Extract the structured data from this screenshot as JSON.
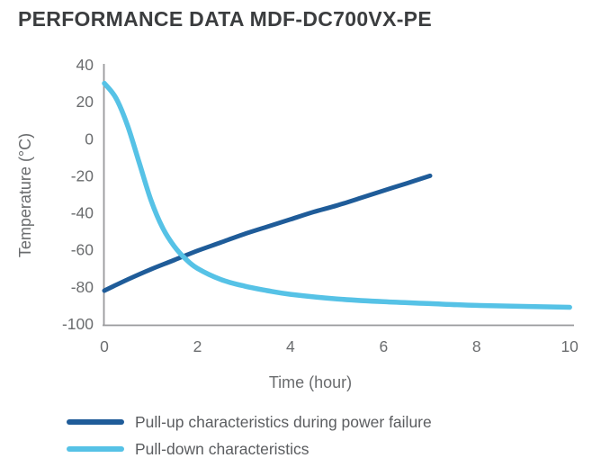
{
  "title": "PERFORMANCE DATA MDF-DC700VX-PE",
  "chart_data": {
    "type": "line",
    "title": "PERFORMANCE DATA MDF-DC700VX-PE",
    "xlabel": "Time (hour)",
    "ylabel": "Temperature (°C)",
    "xlim": [
      0,
      10
    ],
    "ylim": [
      -100,
      40
    ],
    "x_ticks": [
      0,
      2,
      4,
      6,
      8,
      10
    ],
    "y_ticks": [
      40,
      20,
      0,
      -20,
      -40,
      -60,
      -80,
      -100
    ],
    "grid": false,
    "legend_position": "bottom-left",
    "axis_color": "#98999b",
    "series": [
      {
        "name": "Pull-up characteristics during power failure",
        "color": "#1f5c99",
        "points": [
          [
            0,
            -82
          ],
          [
            0.5,
            -76
          ],
          [
            1,
            -70.5
          ],
          [
            1.5,
            -65.5
          ],
          [
            2,
            -60.5
          ],
          [
            2.5,
            -56
          ],
          [
            3,
            -51.5
          ],
          [
            3.5,
            -47.5
          ],
          [
            4,
            -43.5
          ],
          [
            4.5,
            -39.5
          ],
          [
            5,
            -36
          ],
          [
            5.5,
            -32
          ],
          [
            6,
            -28
          ],
          [
            6.5,
            -24
          ],
          [
            7,
            -20
          ]
        ]
      },
      {
        "name": "Pull-down characteristics",
        "color": "#56c2e6",
        "points": [
          [
            0,
            30
          ],
          [
            0.25,
            22
          ],
          [
            0.5,
            7
          ],
          [
            0.75,
            -13
          ],
          [
            1,
            -33
          ],
          [
            1.25,
            -48
          ],
          [
            1.5,
            -58
          ],
          [
            1.75,
            -65
          ],
          [
            2,
            -70
          ],
          [
            2.5,
            -76
          ],
          [
            3,
            -79.5
          ],
          [
            3.5,
            -82
          ],
          [
            4,
            -84
          ],
          [
            5,
            -86.5
          ],
          [
            6,
            -88
          ],
          [
            7,
            -89
          ],
          [
            8,
            -90
          ],
          [
            9,
            -90.5
          ],
          [
            10,
            -91
          ]
        ]
      }
    ],
    "annotations": {
      "crossing_point": [
        1.6,
        -62
      ]
    }
  }
}
